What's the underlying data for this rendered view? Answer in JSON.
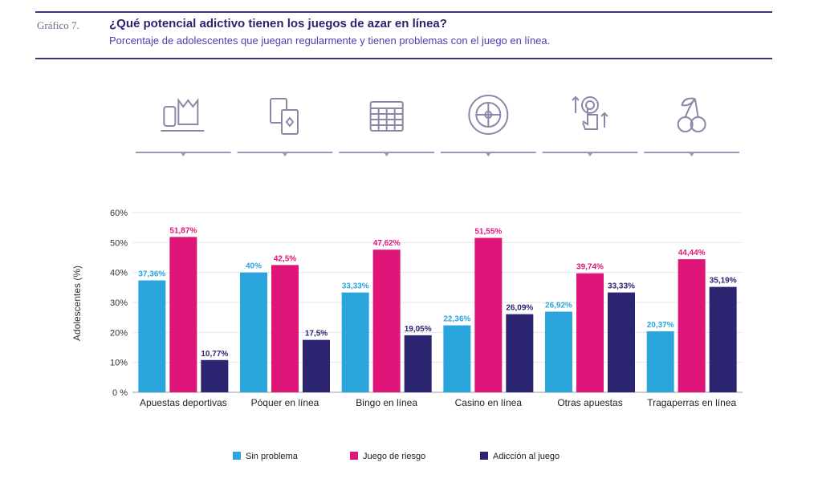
{
  "header": {
    "figure_label": "Gráfico 7.",
    "title": "¿Qué potencial adictivo tienen los juegos de azar en línea?",
    "subtitle": "Porcentaje de adolescentes que juegan regularmente y tienen problemas con el juego en línea."
  },
  "icons": [
    "sports-betting-icon",
    "poker-cards-icon",
    "bingo-card-icon",
    "roulette-icon",
    "tap-betting-icon",
    "cherries-slot-icon"
  ],
  "colors": {
    "sin_problema": "#2ba6dc",
    "juego_riesgo": "#e0157a",
    "adiccion": "#2b2470"
  },
  "chart_data": {
    "type": "bar",
    "categories": [
      "Apuestas deportivas",
      "Póquer en línea",
      "Bingo en línea",
      "Casino en línea",
      "Otras apuestas",
      "Tragaperras en línea"
    ],
    "series": [
      {
        "name": "Sin problema",
        "values": [
          37.36,
          40,
          33.33,
          22.36,
          26.92,
          20.37
        ],
        "labels": [
          "37,36%",
          "40%",
          "33,33%",
          "22,36%",
          "26,92%",
          "20,37%"
        ]
      },
      {
        "name": "Juego de riesgo",
        "values": [
          51.87,
          42.5,
          47.62,
          51.55,
          39.74,
          44.44
        ],
        "labels": [
          "51,87%",
          "42,5%",
          "47,62%",
          "51,55%",
          "39,74%",
          "44,44%"
        ]
      },
      {
        "name": "Adicción al juego",
        "values": [
          10.77,
          17.5,
          19.05,
          26.09,
          33.33,
          35.19
        ],
        "labels": [
          "10,77%",
          "17,5%",
          "19,05%",
          "26,09%",
          "33,33%",
          "35,19%"
        ]
      }
    ],
    "ylabel": "Adolescentes (%)",
    "yticks": [
      "0 %",
      "10%",
      "20%",
      "30%",
      "40%",
      "50%",
      "60%"
    ],
    "ylim": [
      0,
      60
    ],
    "legend_position": "bottom",
    "grid": true
  }
}
